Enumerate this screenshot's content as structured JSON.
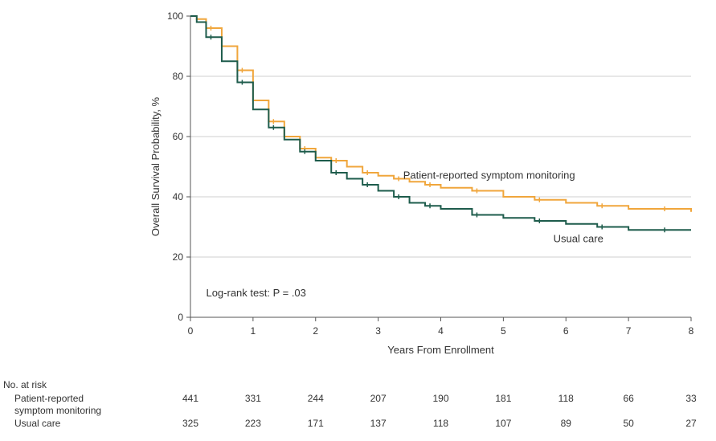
{
  "chart_data": {
    "type": "line",
    "xlabel": "Years From Enrollment",
    "ylabel": "Overall Survival Probability, %",
    "xlim": [
      0,
      8
    ],
    "ylim": [
      0,
      100
    ],
    "x_ticks": [
      "0",
      "1",
      "2",
      "3",
      "4",
      "5",
      "6",
      "7",
      "8"
    ],
    "y_ticks": [
      "0",
      "20",
      "40",
      "60",
      "80",
      "100"
    ],
    "grid": "horizontal at 20, 40, 60, 80",
    "series": [
      {
        "name": "Patient-reported symptom monitoring",
        "color": "#f0a63c",
        "x": [
          0,
          0.1,
          0.25,
          0.5,
          0.75,
          1.0,
          1.25,
          1.5,
          1.75,
          2.0,
          2.25,
          2.5,
          2.75,
          3.0,
          3.25,
          3.5,
          3.75,
          4.0,
          4.5,
          5.0,
          5.5,
          6.0,
          6.5,
          7.0,
          7.5,
          8.0
        ],
        "y": [
          100,
          99,
          96,
          90,
          82,
          72,
          65,
          60,
          56,
          53,
          52,
          50,
          48,
          47,
          46,
          45,
          44,
          43,
          42,
          40,
          39,
          38,
          37,
          36,
          36,
          35
        ]
      },
      {
        "name": "Usual care",
        "color": "#1e5c4c",
        "x": [
          0,
          0.1,
          0.25,
          0.5,
          0.75,
          1.0,
          1.25,
          1.5,
          1.75,
          2.0,
          2.25,
          2.5,
          2.75,
          3.0,
          3.25,
          3.5,
          3.75,
          4.0,
          4.5,
          5.0,
          5.5,
          6.0,
          6.5,
          7.0,
          7.5,
          8.0
        ],
        "y": [
          100,
          98,
          93,
          85,
          78,
          69,
          63,
          59,
          55,
          52,
          48,
          46,
          44,
          42,
          40,
          38,
          37,
          36,
          34,
          33,
          32,
          31,
          30,
          29,
          29,
          29
        ]
      }
    ],
    "annotations": [
      {
        "text": "Patient-reported symptom monitoring",
        "at_x": 3.4,
        "at_y": 46
      },
      {
        "text": "Usual care",
        "at_x": 5.8,
        "at_y": 25
      },
      {
        "text": "Log-rank test: P = .03",
        "at_x": 0.25,
        "at_y": 7
      }
    ]
  },
  "risk_table": {
    "title": "No. at risk",
    "rows": [
      {
        "label": "Patient-reported",
        "label2": "symptom monitoring",
        "values": [
          "441",
          "331",
          "244",
          "207",
          "190",
          "181",
          "118",
          "66",
          "33"
        ]
      },
      {
        "label": "Usual care",
        "label2": "",
        "values": [
          "325",
          "223",
          "171",
          "137",
          "118",
          "107",
          "89",
          "50",
          "27"
        ]
      }
    ]
  }
}
